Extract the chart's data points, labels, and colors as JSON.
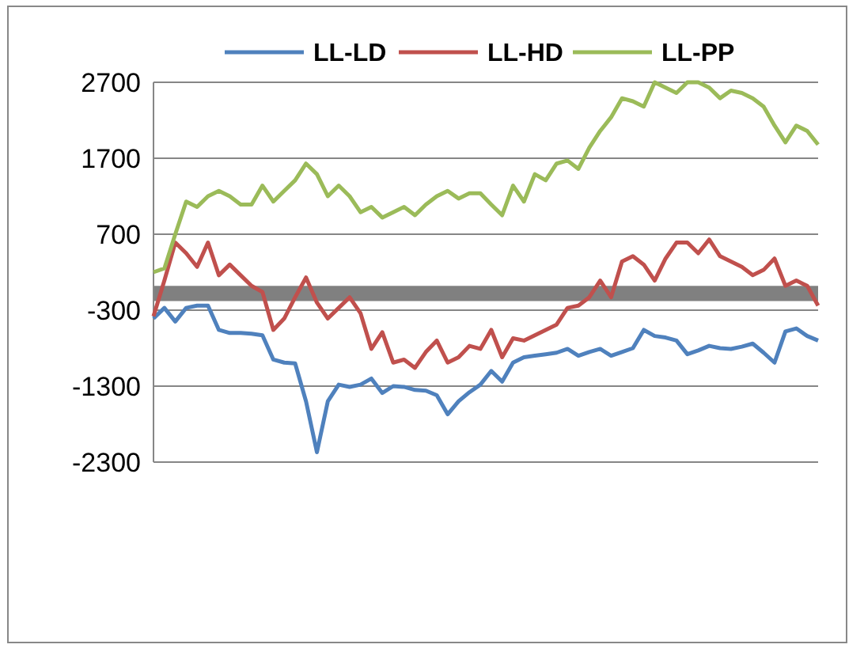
{
  "chart_data": {
    "type": "line",
    "categories": [
      null,
      null,
      null,
      null,
      null,
      null,
      null,
      null,
      null,
      null,
      null,
      null,
      null,
      null,
      null,
      null,
      null,
      null,
      null,
      null,
      null,
      null,
      null,
      null,
      null,
      null,
      null,
      null,
      null,
      null,
      null,
      null,
      null,
      null,
      null,
      null,
      null,
      null,
      null,
      null,
      null,
      null,
      null,
      null,
      null,
      null,
      null,
      null,
      null,
      null,
      null,
      null,
      null,
      null,
      null,
      null,
      null,
      null,
      null,
      null,
      null,
      null
    ],
    "series": [
      {
        "name": "LL-LD",
        "color": "#4f81bd",
        "values": [
          -410,
          -270,
          -450,
          -270,
          -240,
          -240,
          -560,
          -600,
          -600,
          -610,
          -630,
          -950,
          -990,
          -1000,
          -1500,
          -2170,
          -1500,
          -1280,
          -1310,
          -1280,
          -1200,
          -1390,
          -1300,
          -1310,
          -1350,
          -1360,
          -1420,
          -1670,
          -1500,
          -1380,
          -1280,
          -1100,
          -1240,
          -990,
          -920,
          -900,
          -880,
          -860,
          -810,
          -900,
          -850,
          -810,
          -900,
          -850,
          -800,
          -560,
          -640,
          -660,
          -700,
          -880,
          -830,
          -770,
          -800,
          -810,
          -780,
          -740,
          -860,
          -990,
          -580,
          -540,
          -640,
          -700
        ]
      },
      {
        "name": "LL-HD",
        "color": "#c0504d",
        "values": [
          -380,
          90,
          590,
          450,
          270,
          590,
          160,
          300,
          160,
          20,
          -60,
          -560,
          -410,
          -130,
          130,
          -200,
          -410,
          -270,
          -130,
          -340,
          -810,
          -590,
          -990,
          -950,
          -1060,
          -850,
          -700,
          -990,
          -920,
          -770,
          -810,
          -560,
          -920,
          -670,
          -700,
          -630,
          -560,
          -490,
          -270,
          -240,
          -130,
          90,
          -130,
          340,
          410,
          300,
          90,
          380,
          590,
          590,
          450,
          630,
          410,
          340,
          270,
          160,
          230,
          380,
          20,
          90,
          20,
          -240
        ]
      },
      {
        "name": "LL-PP",
        "color": "#9bbb59",
        "values": [
          200,
          250,
          700,
          1130,
          1060,
          1200,
          1270,
          1200,
          1090,
          1090,
          1340,
          1130,
          1270,
          1410,
          1630,
          1490,
          1200,
          1340,
          1200,
          990,
          1060,
          920,
          990,
          1060,
          950,
          1090,
          1200,
          1270,
          1170,
          1240,
          1240,
          1090,
          950,
          1340,
          1130,
          1490,
          1410,
          1630,
          1670,
          1560,
          1840,
          2060,
          2240,
          2490,
          2450,
          2380,
          2700,
          2630,
          2560,
          2700,
          2700,
          2630,
          2490,
          2590,
          2560,
          2490,
          2380,
          2130,
          1910,
          2130,
          2060,
          1880
        ]
      }
    ],
    "ylim": [
      -2300,
      2700
    ],
    "yticks": [
      -2300,
      -1300,
      -300,
      700,
      1700,
      2700
    ],
    "grid": "y",
    "legend": "top",
    "marker": "none",
    "line_style": "solid",
    "bands": [
      {
        "axis": "y",
        "from": -180,
        "to": 20,
        "color": "#808080"
      }
    ]
  }
}
